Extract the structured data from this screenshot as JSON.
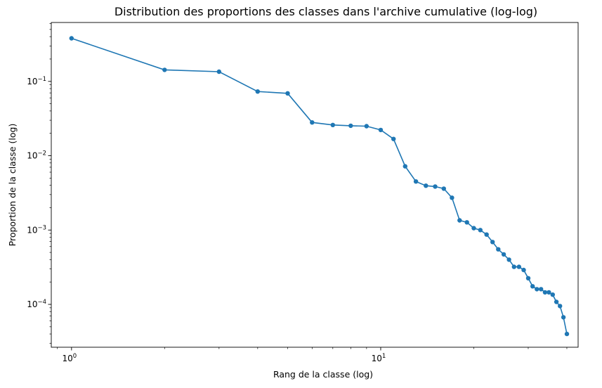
{
  "chart_data": {
    "type": "line",
    "title": "Distribution des proportions des classes dans l'archive cumulative (log-log)",
    "xlabel": "Rang de la classe (log)",
    "ylabel": "Proportion de la classe (log)",
    "xscale": "log",
    "yscale": "log",
    "xlim": [
      0.86,
      43.5
    ],
    "ylim": [
      2.65e-05,
      0.62
    ],
    "grid": false,
    "legend": "none",
    "color": "#1f77b4",
    "x_ticks": [
      {
        "value": 1,
        "base": "10",
        "exp": "0"
      },
      {
        "value": 10,
        "base": "10",
        "exp": "1"
      }
    ],
    "y_ticks": [
      {
        "value": 0.0001,
        "base": "10",
        "exp": "−4"
      },
      {
        "value": 0.001,
        "base": "10",
        "exp": "−3"
      },
      {
        "value": 0.01,
        "base": "10",
        "exp": "−2"
      },
      {
        "value": 0.1,
        "base": "10",
        "exp": "−1"
      }
    ],
    "x": [
      1,
      2,
      3,
      4,
      5,
      6,
      7,
      8,
      9,
      10,
      11,
      12,
      13,
      14,
      15,
      16,
      17,
      18,
      19,
      20,
      21,
      22,
      23,
      24,
      25,
      26,
      27,
      28,
      29,
      30,
      31,
      32,
      33,
      34,
      35,
      36,
      37,
      38,
      39,
      40
    ],
    "values": [
      0.38,
      0.143,
      0.135,
      0.073,
      0.069,
      0.028,
      0.0259,
      0.0253,
      0.025,
      0.0222,
      0.0168,
      0.0072,
      0.0045,
      0.00395,
      0.00385,
      0.0036,
      0.00272,
      0.00135,
      0.00127,
      0.00106,
      0.001,
      0.00087,
      0.00069,
      0.00055,
      0.00047,
      0.0004,
      0.00032,
      0.00032,
      0.00029,
      0.000225,
      0.000175,
      0.00016,
      0.00016,
      0.000145,
      0.000145,
      0.000135,
      0.000108,
      9.5e-05,
      6.7e-05,
      4e-05
    ]
  }
}
